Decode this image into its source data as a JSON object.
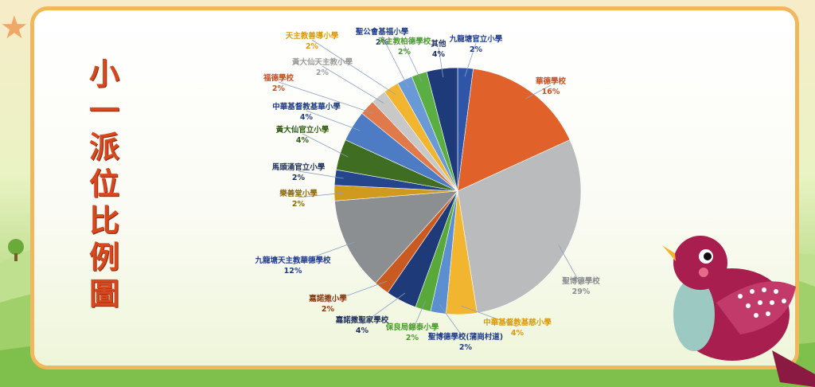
{
  "title": {
    "chars": [
      "小",
      "一",
      "派",
      "位",
      "比",
      "例",
      "圖"
    ]
  },
  "colors": {
    "card_border": "#f0b75c",
    "title": "#d8481f"
  },
  "chart_data": {
    "type": "pie",
    "slices": [
      {
        "name": "九龍塘官立小學",
        "value": 2,
        "label": "2%",
        "color": "#2e55a8",
        "label_color": "#1f3d8a"
      },
      {
        "name": "華德學校",
        "value": 16,
        "label": "16%",
        "color": "#e0622a",
        "label_color": "#c8501f"
      },
      {
        "name": "聖博德學校",
        "value": 29,
        "label": "29%",
        "color": "#b9bbbd",
        "label_color": "#8a8c8e"
      },
      {
        "name": "中華基督教基慈小學",
        "value": 4,
        "label": "4%",
        "color": "#f2b530",
        "label_color": "#d99a12"
      },
      {
        "name": "聖博德學校(蒲崗村道)",
        "value": 2,
        "label": "2%",
        "color": "#5c8fd0",
        "label_color": "#1f3d8a"
      },
      {
        "name": "保良局錦泰小學",
        "value": 2,
        "label": "2%",
        "color": "#58a83a",
        "label_color": "#4a9a2c"
      },
      {
        "name": "嘉諾撒聖家學校",
        "value": 4,
        "label": "4%",
        "color": "#1f3a78",
        "label_color": "#1f2f5c"
      },
      {
        "name": "嘉諾撒小學",
        "value": 2,
        "label": "2%",
        "color": "#c85a22",
        "label_color": "#8a3a10"
      },
      {
        "name": "九龍塘天主教華德學校",
        "value": 12,
        "label": "12%",
        "color": "#8c8f92",
        "label_color": "#1f3d8a"
      },
      {
        "name": "樂善堂小學",
        "value": 2,
        "label": "2%",
        "color": "#cf9a1e",
        "label_color": "#8a6a10"
      },
      {
        "name": "馬頭涌官立小學",
        "value": 2,
        "label": "2%",
        "color": "#25468c",
        "label_color": "#1f2f5c"
      },
      {
        "name": "黃大仙官立小學",
        "value": 4,
        "label": "4%",
        "color": "#3f6e22",
        "label_color": "#2f5a14"
      },
      {
        "name": "中華基督教基華小學",
        "value": 4,
        "label": "4%",
        "color": "#4d7cc4",
        "label_color": "#1f3d8a"
      },
      {
        "name": "福德學校",
        "value": 2,
        "label": "2%",
        "color": "#e07a4a",
        "label_color": "#c8501f"
      },
      {
        "name": "黃大仙天主教小學",
        "value": 2,
        "label": "2%",
        "color": "#c8c8c8",
        "label_color": "#9a9a9a"
      },
      {
        "name": "天主教善導小學",
        "value": 2,
        "label": "2%",
        "color": "#f2b530",
        "label_color": "#d99a12"
      },
      {
        "name": "聖公會基福小學",
        "value": 2,
        "label": "2%",
        "color": "#6a9ad6",
        "label_color": "#1f3d8a"
      },
      {
        "name": "天主教柏德學校",
        "value": 2,
        "label": "2%",
        "color": "#5aae42",
        "label_color": "#4a9a2c"
      },
      {
        "name": "其他",
        "value": 4,
        "label": "4%",
        "color": "#1f3a78",
        "label_color": "#1f2f5c"
      }
    ]
  }
}
